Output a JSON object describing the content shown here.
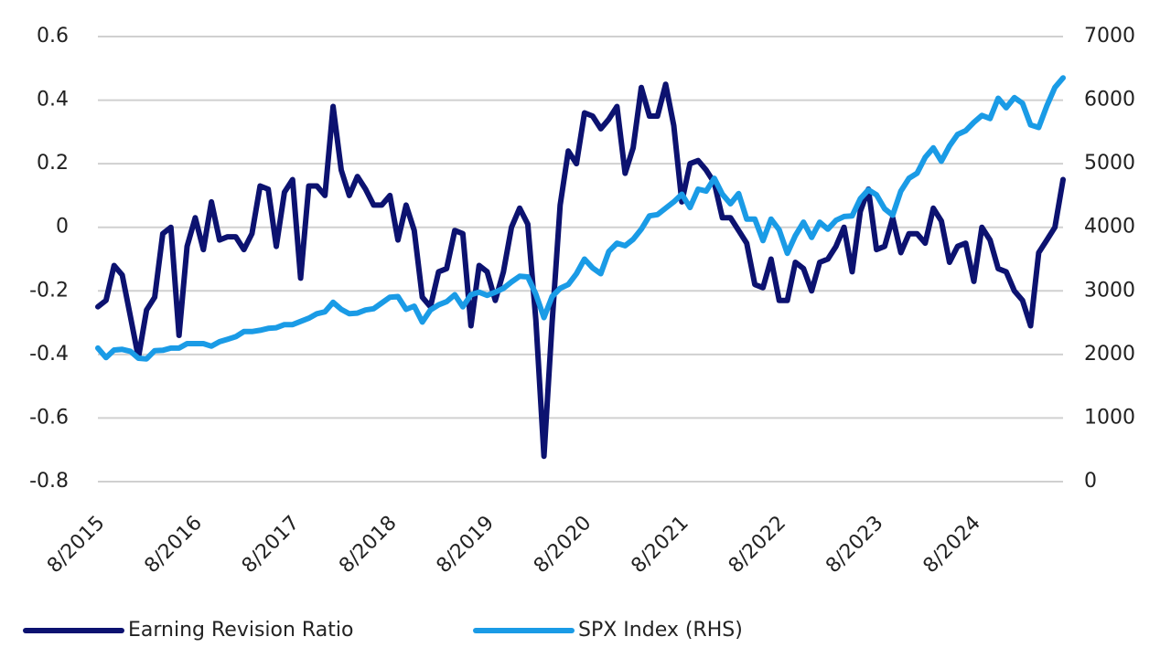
{
  "chart_data": {
    "type": "line",
    "categories": [
      "8/2015",
      null,
      null,
      null,
      null,
      null,
      null,
      null,
      null,
      null,
      null,
      null,
      "8/2016",
      null,
      null,
      null,
      null,
      null,
      null,
      null,
      null,
      null,
      null,
      null,
      "8/2017",
      null,
      null,
      null,
      null,
      null,
      null,
      null,
      null,
      null,
      null,
      null,
      "8/2018",
      null,
      null,
      null,
      null,
      null,
      null,
      null,
      null,
      null,
      null,
      null,
      "8/2019",
      null,
      null,
      null,
      null,
      null,
      null,
      null,
      null,
      null,
      null,
      null,
      "8/2020",
      null,
      null,
      null,
      null,
      null,
      null,
      null,
      null,
      null,
      null,
      null,
      "8/2021",
      null,
      null,
      null,
      null,
      null,
      null,
      null,
      null,
      null,
      null,
      null,
      "8/2022",
      null,
      null,
      null,
      null,
      null,
      null,
      null,
      null,
      null,
      null,
      null,
      "8/2023",
      null,
      null,
      null,
      null,
      null,
      null,
      null,
      null,
      null,
      null,
      null,
      "8/2024",
      null,
      null,
      null,
      null,
      null,
      null,
      null,
      null,
      null,
      null,
      null
    ],
    "series": [
      {
        "name": "Earning Revision Ratio",
        "color": "#0c1270",
        "values": [
          -0.25,
          -0.23,
          -0.12,
          -0.15,
          -0.28,
          -0.41,
          -0.26,
          -0.22,
          -0.02,
          0.0,
          -0.34,
          -0.06,
          0.03,
          -0.07,
          0.08,
          -0.04,
          -0.03,
          -0.03,
          -0.07,
          -0.02,
          0.13,
          0.12,
          -0.06,
          0.11,
          0.15,
          -0.16,
          0.13,
          0.13,
          0.1,
          0.38,
          0.18,
          0.1,
          0.16,
          0.12,
          0.07,
          0.07,
          0.1,
          -0.04,
          0.07,
          -0.01,
          -0.22,
          -0.25,
          -0.14,
          -0.13,
          -0.01,
          -0.02,
          -0.31,
          -0.12,
          -0.14,
          -0.23,
          -0.14,
          0.0,
          0.06,
          0.01,
          -0.29,
          -0.72,
          -0.3,
          0.07,
          0.24,
          0.2,
          0.36,
          0.35,
          0.31,
          0.34,
          0.38,
          0.17,
          0.25,
          0.44,
          0.35,
          0.35,
          0.45,
          0.32,
          0.08,
          0.2,
          0.21,
          0.18,
          0.14,
          0.03,
          0.03,
          -0.01,
          -0.05,
          -0.18,
          -0.19,
          -0.1,
          -0.23,
          -0.23,
          -0.11,
          -0.13,
          -0.2,
          -0.11,
          -0.1,
          -0.06,
          0.0,
          -0.14,
          0.05,
          0.12,
          -0.07,
          -0.06,
          0.03,
          -0.08,
          -0.02,
          -0.02,
          -0.05,
          0.06,
          0.02,
          -0.11,
          -0.06,
          -0.05,
          -0.17,
          0.0,
          -0.04,
          -0.13,
          -0.14,
          -0.2,
          -0.23,
          -0.31,
          -0.08,
          -0.04,
          0.0,
          0.15
        ]
      },
      {
        "name": "SPX Index (RHS)",
        "color": "#1a9be6",
        "axis": "y2",
        "values": [
          2100,
          1950,
          2070,
          2080,
          2050,
          1940,
          1930,
          2060,
          2065,
          2100,
          2100,
          2170,
          2170,
          2170,
          2130,
          2200,
          2240,
          2280,
          2360,
          2360,
          2380,
          2410,
          2420,
          2470,
          2470,
          2520,
          2570,
          2640,
          2670,
          2820,
          2710,
          2640,
          2650,
          2700,
          2720,
          2810,
          2900,
          2910,
          2710,
          2760,
          2510,
          2700,
          2780,
          2830,
          2940,
          2750,
          2940,
          2980,
          2930,
          2980,
          3040,
          3140,
          3230,
          3220,
          2950,
          2580,
          2910,
          3040,
          3100,
          3270,
          3500,
          3360,
          3270,
          3620,
          3750,
          3710,
          3810,
          3970,
          4180,
          4200,
          4300,
          4400,
          4520,
          4310,
          4600,
          4570,
          4770,
          4520,
          4370,
          4530,
          4130,
          4130,
          3790,
          4130,
          3960,
          3590,
          3870,
          4080,
          3840,
          4080,
          3970,
          4110,
          4170,
          4180,
          4450,
          4590,
          4510,
          4290,
          4190,
          4570,
          4770,
          4850,
          5100,
          5250,
          5040,
          5280,
          5460,
          5520,
          5650,
          5760,
          5710,
          6030,
          5880,
          6040,
          5950,
          5610,
          5570,
          5910,
          6200,
          6350
        ]
      }
    ],
    "ylim": [
      -0.8,
      0.6
    ],
    "yticks": [
      -0.8,
      -0.6,
      -0.4,
      -0.2,
      0,
      0.2,
      0.4,
      0.6
    ],
    "y2lim": [
      0,
      7000
    ],
    "y2ticks": [
      0,
      1000,
      2000,
      3000,
      4000,
      5000,
      6000,
      7000
    ],
    "grid": true,
    "legend": "bottom"
  }
}
